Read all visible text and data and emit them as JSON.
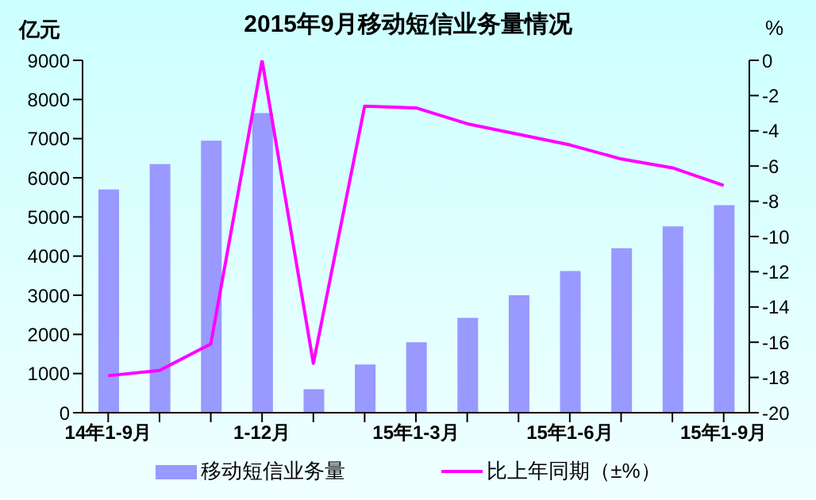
{
  "chart_data": {
    "type": "bar",
    "title": "2015年9月移动短信业务量情况",
    "ylabel": "亿元",
    "y2label": "%",
    "categories": [
      "14年1-9月",
      null,
      null,
      "1-12月",
      null,
      null,
      "15年1-3月",
      null,
      null,
      "15年1-6月",
      null,
      null,
      "15年1-9月"
    ],
    "series": [
      {
        "name": "移动短信业务量",
        "color": "#9999ff",
        "values": [
          5700,
          6350,
          6950,
          7650,
          600,
          1230,
          1800,
          2420,
          3000,
          3620,
          4200,
          4760,
          5300
        ]
      },
      {
        "name": "比上年同期（±%）",
        "type": "line",
        "axis": "y2",
        "color": "#ff00ff",
        "values": [
          -17.9,
          -17.6,
          -16.1,
          0,
          -17.2,
          -2.6,
          -2.7,
          -3.6,
          -4.2,
          -4.8,
          -5.6,
          -6.1,
          -7.1
        ]
      }
    ],
    "ylim": [
      0,
      9000
    ],
    "yticks": [
      0,
      1000,
      2000,
      3000,
      4000,
      5000,
      6000,
      7000,
      8000,
      9000
    ],
    "y2lim": [
      -20,
      0
    ],
    "y2ticks": [
      -20,
      -18,
      -16,
      -14,
      -12,
      -10,
      -8,
      -6,
      -4,
      -2,
      0
    ],
    "legend": "bottom",
    "grid": false,
    "marker": "none"
  }
}
